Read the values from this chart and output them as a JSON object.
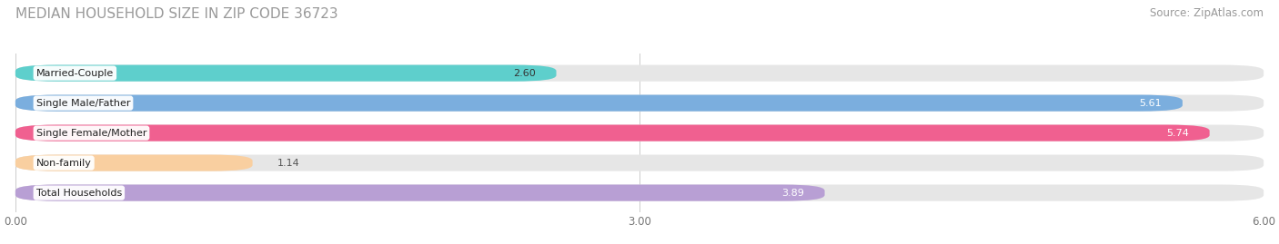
{
  "title": "MEDIAN HOUSEHOLD SIZE IN ZIP CODE 36723",
  "source": "Source: ZipAtlas.com",
  "categories": [
    "Married-Couple",
    "Single Male/Father",
    "Single Female/Mother",
    "Non-family",
    "Total Households"
  ],
  "values": [
    2.6,
    5.61,
    5.74,
    1.14,
    3.89
  ],
  "bar_colors": [
    "#5ecfcc",
    "#7baede",
    "#f06090",
    "#f9cfa0",
    "#b89fd4"
  ],
  "label_colors": [
    "#333333",
    "#ffffff",
    "#ffffff",
    "#333333",
    "#ffffff"
  ],
  "value_outside_color": "#555555",
  "xlim": [
    0,
    6.0
  ],
  "xticks": [
    0.0,
    3.0,
    6.0
  ],
  "xtick_labels": [
    "0.00",
    "3.00",
    "6.00"
  ],
  "background_color": "#f5f5f5",
  "bar_background_color": "#e6e6e6",
  "title_fontsize": 11,
  "source_fontsize": 8.5,
  "label_fontsize": 8,
  "value_fontsize": 8
}
